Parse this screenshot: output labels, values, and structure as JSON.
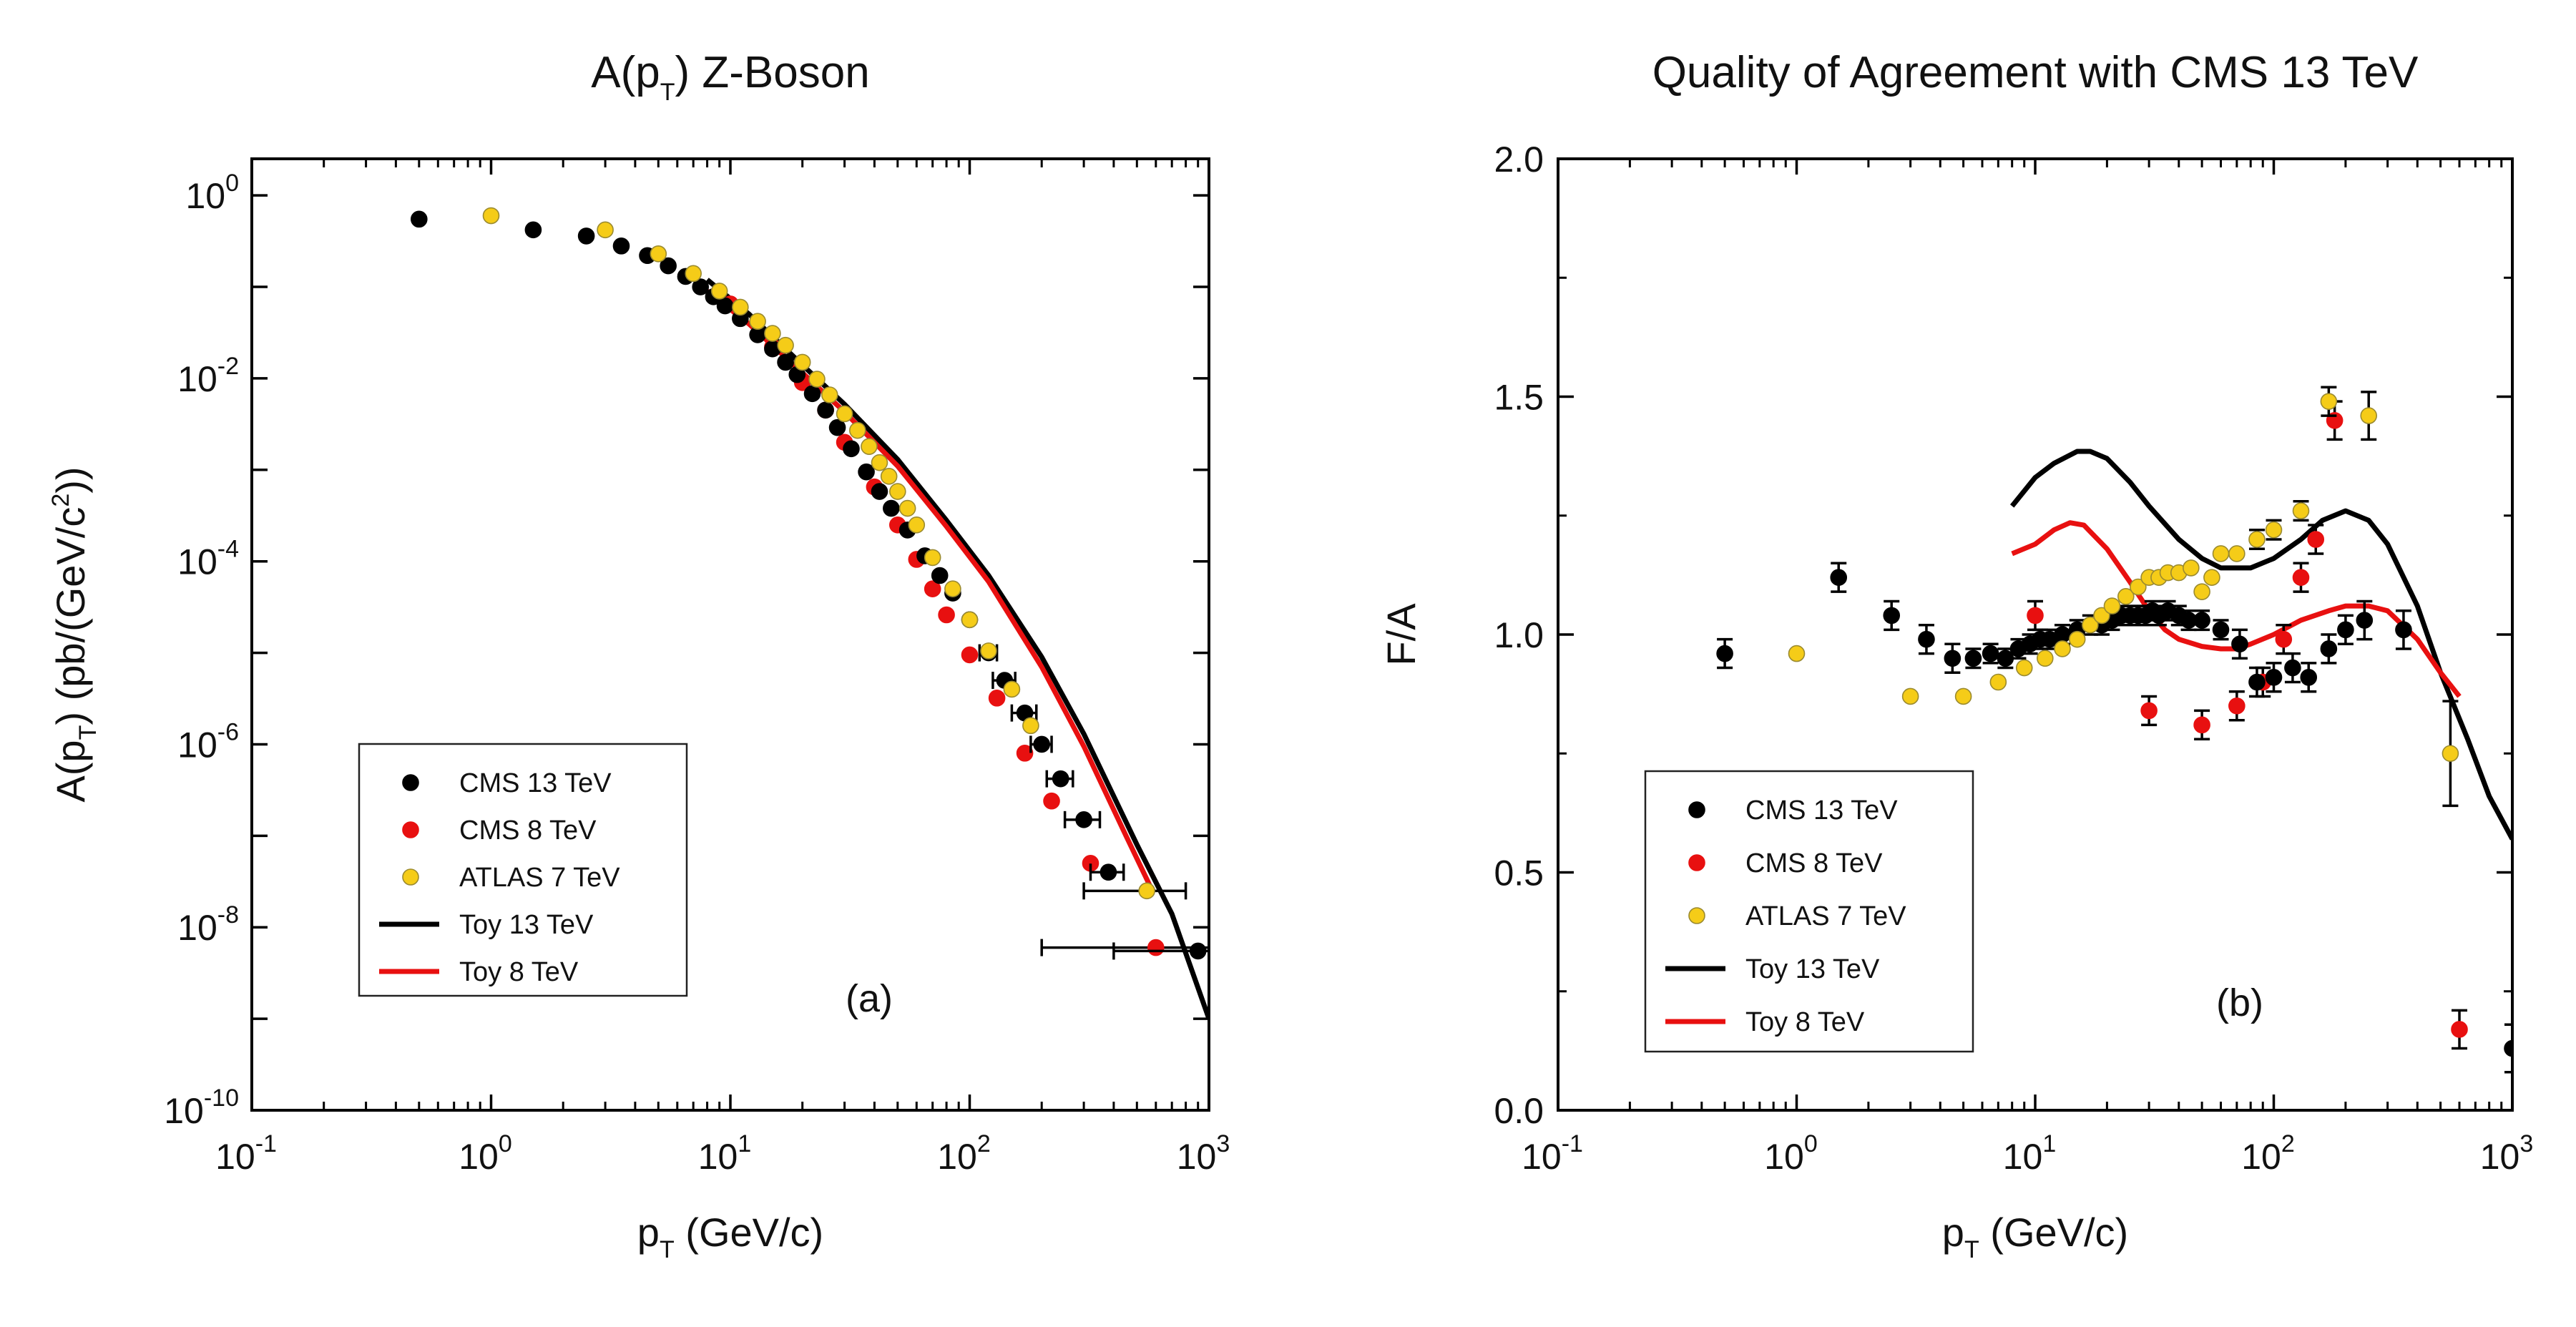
{
  "colors": {
    "cms13": "#000000",
    "cms8": "#e81010",
    "atlas7": "#f5cc18",
    "atlas7_edge": "#9a8a30",
    "toy13": "#000000",
    "toy8": "#e81010"
  },
  "chart_data": [
    {
      "id": "left",
      "type": "scatter",
      "scale": "log-log",
      "title_pre": "A(p",
      "title_sub": "T",
      "title_post": ") Z-Boson",
      "xlabel_pre": "p",
      "xlabel_sub": "T",
      "xlabel_post": " (GeV/c)",
      "ylabel_a": "A(p",
      "ylabel_sub": "T",
      "ylabel_b": ") (pb/(GeV/c",
      "ylabel_sup": "2",
      "ylabel_c": "))",
      "xlim_exp": [
        -1,
        3
      ],
      "ylim_exp": [
        -10,
        0.4
      ],
      "xticks": [
        {
          "base": "10",
          "exp": "-1"
        },
        {
          "base": "10",
          "exp": "0"
        },
        {
          "base": "10",
          "exp": "1"
        },
        {
          "base": "10",
          "exp": "2"
        },
        {
          "base": "10",
          "exp": "3"
        }
      ],
      "yticks": [
        {
          "base": "10",
          "exp": "0"
        },
        {
          "base": "10",
          "exp": "-2"
        },
        {
          "base": "10",
          "exp": "-4"
        },
        {
          "base": "10",
          "exp": "-6"
        },
        {
          "base": "10",
          "exp": "-8"
        },
        {
          "base": "10",
          "exp": "-10"
        }
      ],
      "panel_label": "(a)",
      "legend": [
        "CMS 13 TeV",
        "CMS 8 TeV",
        "ATLAS 7 TeV",
        "Toy 13 TeV",
        "Toy 8 TeV"
      ],
      "series": [
        {
          "name": "CMS 13 TeV",
          "kind": "points",
          "x": [
            0.5,
            1.5,
            2.5,
            3.5,
            4.5,
            5.5,
            6.5,
            7.5,
            8.5,
            9.5,
            11,
            13,
            15,
            17,
            19,
            22,
            25,
            28,
            32,
            37,
            42,
            47,
            55,
            65,
            75,
            85,
            100,
            120,
            140,
            170,
            200,
            240,
            300,
            380,
            900
          ],
          "y": [
            0.55,
            0.42,
            0.36,
            0.28,
            0.22,
            0.17,
            0.13,
            0.1,
            0.078,
            0.062,
            0.045,
            0.03,
            0.021,
            0.015,
            0.011,
            0.0068,
            0.0045,
            0.0029,
            0.0017,
            0.00095,
            0.00058,
            0.00038,
            0.00022,
            0.000115,
            7e-05,
            4.5e-05,
            2.3e-05,
            1e-05,
            5e-06,
            2.2e-06,
            1e-06,
            4.2e-07,
            1.5e-07,
            4e-08,
            5.5e-09
          ],
          "xerr_lo": [
            0,
            0,
            0,
            0,
            0,
            0,
            0,
            0,
            0,
            0,
            0,
            0,
            0,
            0,
            0,
            0,
            0,
            0,
            0,
            0,
            0,
            0,
            0,
            0,
            0,
            0,
            0,
            10,
            15,
            20,
            20,
            30,
            50,
            60,
            500
          ],
          "xerr_hi": [
            0,
            0,
            0,
            0,
            0,
            0,
            0,
            0,
            0,
            0,
            0,
            0,
            0,
            0,
            0,
            0,
            0,
            0,
            0,
            0,
            0,
            0,
            0,
            0,
            0,
            0,
            0,
            10,
            15,
            20,
            20,
            30,
            50,
            60,
            500
          ]
        },
        {
          "name": "CMS 8 TeV",
          "kind": "points",
          "x": [
            10,
            15,
            20,
            25,
            30,
            40,
            50,
            60,
            70,
            80,
            100,
            130,
            170,
            220,
            320,
            600
          ],
          "y": [
            0.065,
            0.022,
            0.009,
            0.0045,
            0.002,
            0.00065,
            0.00025,
            0.000105,
            5e-05,
            2.6e-05,
            9.5e-06,
            3.2e-06,
            8e-07,
            2.4e-07,
            5e-08,
            6e-09
          ],
          "xerr_lo": [
            0,
            0,
            0,
            0,
            0,
            0,
            0,
            0,
            0,
            0,
            0,
            0,
            0,
            0,
            0,
            400
          ],
          "xerr_hi": [
            0,
            0,
            0,
            0,
            0,
            0,
            0,
            0,
            0,
            0,
            0,
            0,
            0,
            0,
            0,
            400
          ]
        },
        {
          "name": "ATLAS 7 TeV",
          "kind": "points",
          "x": [
            1,
            3,
            5,
            7,
            9,
            11,
            13,
            15,
            17,
            20,
            23,
            26,
            30,
            34,
            38,
            42,
            46,
            50,
            55,
            60,
            70,
            85,
            100,
            120,
            150,
            180,
            550
          ],
          "y": [
            0.6,
            0.42,
            0.23,
            0.14,
            0.09,
            0.06,
            0.042,
            0.031,
            0.023,
            0.015,
            0.0098,
            0.0066,
            0.0041,
            0.0027,
            0.0018,
            0.0012,
            0.00085,
            0.00058,
            0.00038,
            0.00025,
            0.00011,
            5e-05,
            2.3e-05,
            1.05e-05,
            4e-06,
            1.6e-06,
            2.5e-08
          ],
          "xerr_lo": [
            0,
            0,
            0,
            0,
            0,
            0,
            0,
            0,
            0,
            0,
            0,
            0,
            0,
            0,
            0,
            0,
            0,
            0,
            0,
            0,
            0,
            0,
            0,
            0,
            0,
            0,
            250
          ],
          "xerr_hi": [
            0,
            0,
            0,
            0,
            0,
            0,
            0,
            0,
            0,
            0,
            0,
            0,
            0,
            0,
            0,
            0,
            0,
            0,
            0,
            0,
            0,
            0,
            0,
            0,
            0,
            0,
            250
          ]
        },
        {
          "name": "Toy 13 TeV",
          "kind": "line",
          "x": [
            8,
            12,
            20,
            30,
            50,
            80,
            120,
            200,
            300,
            500,
            700,
            1000
          ],
          "y": [
            0.12,
            0.05,
            0.014,
            0.0052,
            0.0013,
            0.00028,
            7e-05,
            9e-06,
            1.3e-06,
            8e-08,
            1.4e-08,
            1e-09
          ]
        },
        {
          "name": "Toy 8 TeV",
          "kind": "line",
          "x": [
            8,
            12,
            20,
            30,
            50,
            80,
            120,
            200,
            300,
            450,
            580
          ],
          "y": [
            0.09,
            0.039,
            0.0115,
            0.0043,
            0.0011,
            0.00024,
            6e-05,
            7e-06,
            9.5e-07,
            1e-07,
            2.5e-08
          ]
        }
      ]
    },
    {
      "id": "right",
      "type": "scatter",
      "scale": "log-x",
      "title": "Quality of Agreement with CMS 13 TeV",
      "xlabel_pre": "p",
      "xlabel_sub": "T",
      "xlabel_post": " (GeV/c)",
      "ylabel": "F/A",
      "xlim_exp": [
        -1,
        3
      ],
      "ylim": [
        0,
        2
      ],
      "xticks": [
        {
          "base": "10",
          "exp": "-1"
        },
        {
          "base": "10",
          "exp": "0"
        },
        {
          "base": "10",
          "exp": "1"
        },
        {
          "base": "10",
          "exp": "2"
        },
        {
          "base": "10",
          "exp": "3"
        }
      ],
      "yticks": [
        "0.0",
        "0.5",
        "1.0",
        "1.5",
        "2.0"
      ],
      "ytick_values": [
        0,
        0.5,
        1.0,
        1.5,
        2.0
      ],
      "panel_label": "(b)",
      "legend": [
        "CMS 13 TeV",
        "CMS 8 TeV",
        "ATLAS 7 TeV",
        "Toy 13 TeV",
        "Toy 8 TeV"
      ],
      "series": [
        {
          "name": "CMS 13 TeV",
          "kind": "points",
          "x": [
            0.5,
            1.5,
            2.5,
            3.5,
            4.5,
            5.5,
            6.5,
            7.5,
            8.5,
            9.5,
            10.5,
            11.5,
            13,
            15,
            17,
            19,
            21,
            23,
            25,
            27,
            29,
            31,
            33,
            36,
            40,
            44,
            50,
            60,
            72,
            85,
            100,
            120,
            140,
            170,
            200,
            240,
            350,
            1000
          ],
          "y": [
            0.96,
            1.12,
            1.04,
            0.99,
            0.95,
            0.95,
            0.96,
            0.95,
            0.97,
            0.98,
            0.99,
            0.99,
            1.0,
            1.01,
            1.02,
            1.02,
            1.03,
            1.04,
            1.04,
            1.04,
            1.04,
            1.05,
            1.04,
            1.05,
            1.04,
            1.03,
            1.03,
            1.01,
            0.98,
            0.9,
            0.91,
            0.93,
            0.91,
            0.97,
            1.01,
            1.03,
            1.01,
            0.13
          ],
          "yerr": [
            0.03,
            0.03,
            0.03,
            0.03,
            0.03,
            0.02,
            0.02,
            0.02,
            0.02,
            0.02,
            0.02,
            0.02,
            0.02,
            0.02,
            0.02,
            0.02,
            0.02,
            0.02,
            0.02,
            0.02,
            0.02,
            0.02,
            0.02,
            0.02,
            0.02,
            0.02,
            0.02,
            0.02,
            0.03,
            0.03,
            0.03,
            0.03,
            0.03,
            0.03,
            0.03,
            0.04,
            0.04,
            0.05
          ]
        },
        {
          "name": "CMS 8 TeV",
          "kind": "points",
          "x": [
            10,
            30,
            50,
            70,
            90,
            110,
            130,
            150,
            180,
            600
          ],
          "y": [
            1.04,
            0.84,
            0.81,
            0.85,
            0.9,
            0.99,
            1.12,
            1.2,
            1.45,
            0.17
          ],
          "yerr": [
            0.03,
            0.03,
            0.03,
            0.03,
            0.03,
            0.03,
            0.03,
            0.03,
            0.04,
            0.04
          ]
        },
        {
          "name": "ATLAS 7 TeV",
          "kind": "points",
          "x": [
            1,
            3,
            5,
            7,
            9,
            11,
            13,
            15,
            17,
            19,
            21,
            24,
            27,
            30,
            33,
            36,
            40,
            45,
            50,
            55,
            60,
            70,
            85,
            100,
            130,
            170,
            250,
            550
          ],
          "y": [
            0.96,
            0.87,
            0.87,
            0.9,
            0.93,
            0.95,
            0.97,
            0.99,
            1.02,
            1.04,
            1.06,
            1.08,
            1.1,
            1.12,
            1.12,
            1.13,
            1.13,
            1.14,
            1.09,
            1.12,
            1.17,
            1.17,
            1.2,
            1.22,
            1.26,
            1.49,
            1.46,
            0.75
          ],
          "yerr": [
            0,
            0,
            0,
            0,
            0,
            0,
            0,
            0,
            0,
            0,
            0,
            0,
            0,
            0,
            0,
            0,
            0,
            0,
            0,
            0,
            0,
            0,
            0.02,
            0.02,
            0.02,
            0.03,
            0.05,
            0.11
          ]
        },
        {
          "name": "Toy 13 TeV",
          "kind": "line",
          "x": [
            8,
            10,
            12,
            15,
            17,
            20,
            25,
            30,
            40,
            50,
            60,
            80,
            100,
            130,
            160,
            200,
            250,
            300,
            400,
            500,
            650,
            800,
            1000
          ],
          "y": [
            1.27,
            1.33,
            1.36,
            1.385,
            1.385,
            1.37,
            1.32,
            1.27,
            1.2,
            1.16,
            1.14,
            1.14,
            1.16,
            1.2,
            1.24,
            1.26,
            1.24,
            1.19,
            1.06,
            0.92,
            0.78,
            0.66,
            0.57
          ]
        },
        {
          "name": "Toy 8 TeV",
          "kind": "line",
          "x": [
            8,
            10,
            12,
            14,
            16,
            20,
            25,
            30,
            35,
            40,
            50,
            60,
            70,
            80,
            100,
            130,
            170,
            200,
            250,
            300,
            400,
            500,
            600
          ],
          "y": [
            1.17,
            1.19,
            1.22,
            1.235,
            1.23,
            1.18,
            1.11,
            1.05,
            1.01,
            0.99,
            0.975,
            0.97,
            0.97,
            0.98,
            1.0,
            1.03,
            1.05,
            1.06,
            1.06,
            1.05,
            0.99,
            0.92,
            0.87
          ]
        }
      ]
    }
  ]
}
